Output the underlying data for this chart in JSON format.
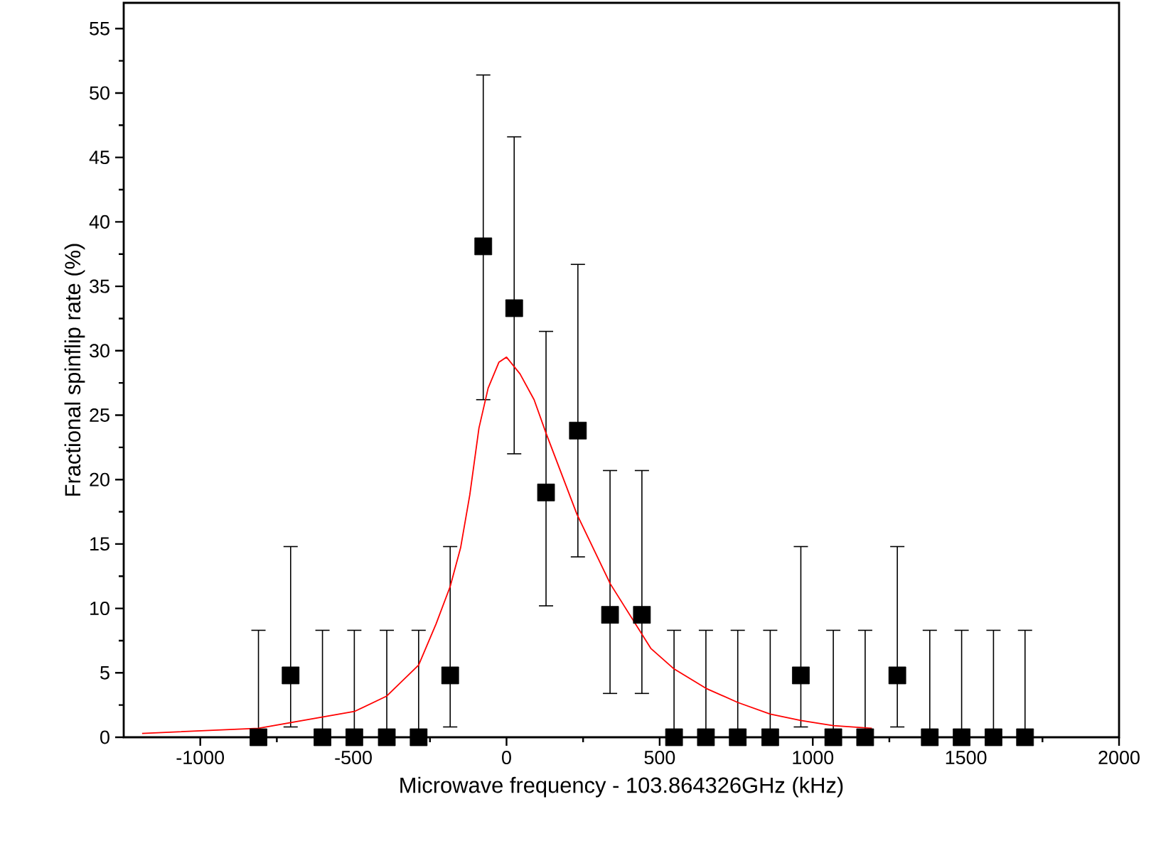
{
  "chart_data": {
    "type": "scatter",
    "xlabel": "Microwave frequency - 103.864326GHz (kHz)",
    "ylabel": "Fractional spinflip rate (%)",
    "xlim": [
      -1250,
      2000
    ],
    "xticks": [
      -1000,
      -500,
      0,
      500,
      1000,
      1500,
      2000
    ],
    "ylim": [
      0,
      57
    ],
    "yticks": [
      0,
      5,
      10,
      15,
      20,
      25,
      30,
      35,
      40,
      45,
      50,
      55
    ],
    "grid": false,
    "series": [
      {
        "color": "#000000",
        "marker": "square",
        "x": [
          -810,
          -705,
          -601,
          -497,
          -391,
          -287,
          -184,
          -76,
          25,
          129,
          233,
          338,
          442,
          547,
          651,
          755,
          861,
          961,
          1067,
          1171,
          1276,
          1382,
          1486,
          1590,
          1693
        ],
        "values": [
          0,
          4.8,
          0,
          0,
          0,
          0,
          4.8,
          38.1,
          33.3,
          19.0,
          23.8,
          9.5,
          9.5,
          0,
          0,
          0,
          0,
          4.8,
          0,
          0,
          4.8,
          0,
          0,
          0,
          0
        ],
        "errors": [
          [
            0,
            8.3
          ],
          [
            0.8,
            14.8
          ],
          [
            0,
            8.3
          ],
          [
            0,
            8.3
          ],
          [
            0,
            8.3
          ],
          [
            0,
            8.3
          ],
          [
            0.8,
            14.8
          ],
          [
            26.2,
            51.4
          ],
          [
            22.0,
            46.6
          ],
          [
            10.2,
            31.5
          ],
          [
            14.0,
            36.7
          ],
          [
            3.4,
            20.7
          ],
          [
            3.4,
            20.7
          ],
          [
            0,
            8.3
          ],
          [
            0,
            8.3
          ],
          [
            0,
            8.3
          ],
          [
            0,
            8.3
          ],
          [
            0.8,
            14.8
          ],
          [
            0,
            8.3
          ],
          [
            0,
            8.3
          ],
          [
            0.8,
            14.8
          ],
          [
            0,
            8.3
          ],
          [
            0,
            8.3
          ],
          [
            0,
            8.3
          ],
          [
            0,
            8.3
          ]
        ]
      },
      {
        "type": "line",
        "color": "#ff0000",
        "marker": "none",
        "line_style": "solid",
        "x": [
          -1190,
          -810,
          -497,
          -391,
          -287,
          -230,
          -184,
          -150,
          -120,
          -90,
          -60,
          -25,
          0,
          44,
          90,
          129,
          230,
          339,
          471,
          547,
          651,
          755,
          861,
          961,
          1067,
          1193
        ],
        "values": [
          0.3,
          0.7,
          2.0,
          3.2,
          5.6,
          8.8,
          11.7,
          14.7,
          18.8,
          24.0,
          27.1,
          29.1,
          29.5,
          28.2,
          26.2,
          23.6,
          17.3,
          11.9,
          6.9,
          5.3,
          3.8,
          2.7,
          1.8,
          1.3,
          0.9,
          0.7
        ]
      }
    ]
  }
}
